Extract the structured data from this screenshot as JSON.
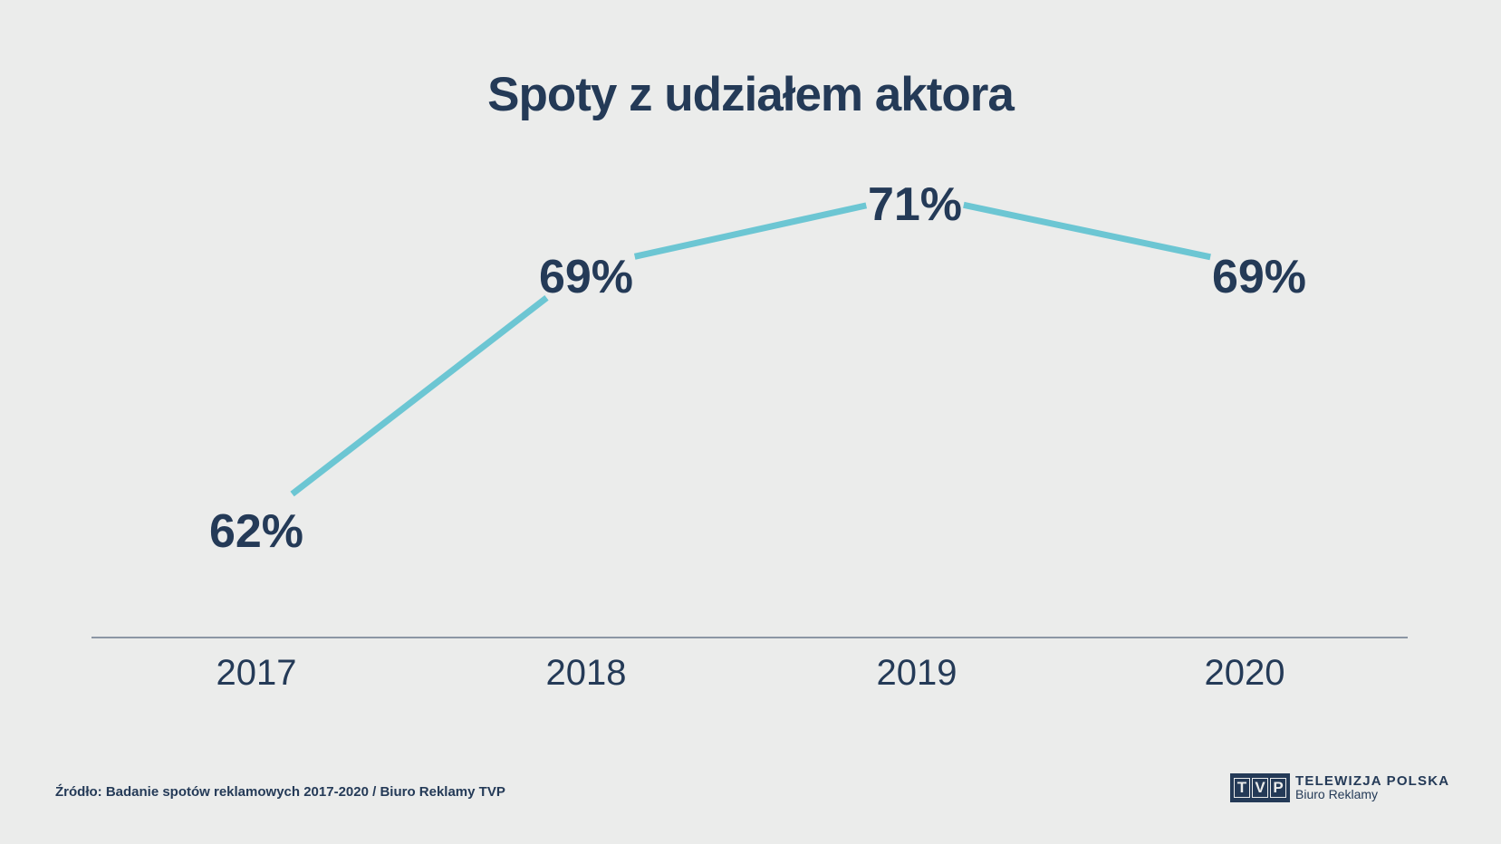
{
  "chart_data": {
    "type": "line",
    "title": "Spoty z udziałem aktora",
    "categories": [
      "2017",
      "2018",
      "2019",
      "2020"
    ],
    "series": [
      {
        "name": "Spoty z udziałem aktora",
        "values": [
          62,
          69,
          71,
          69
        ],
        "unit": "%"
      }
    ],
    "data_labels": [
      "62%",
      "69%",
      "71%",
      "69%"
    ],
    "xlabel": "",
    "ylabel": "",
    "ylim": [
      55,
      74
    ],
    "grid": false,
    "legend": "none",
    "line_color": "#6cc6d3",
    "text_color": "#243a57",
    "axis_color": "#6d7a8c"
  },
  "footer": {
    "source": "Źródło: Badanie spotów reklamowych 2017-2020 / Biuro Reklamy TVP"
  },
  "logo": {
    "letters": [
      "T",
      "V",
      "P"
    ],
    "line1": "TELEWIZJA POLSKA",
    "line2": "Biuro Reklamy"
  }
}
